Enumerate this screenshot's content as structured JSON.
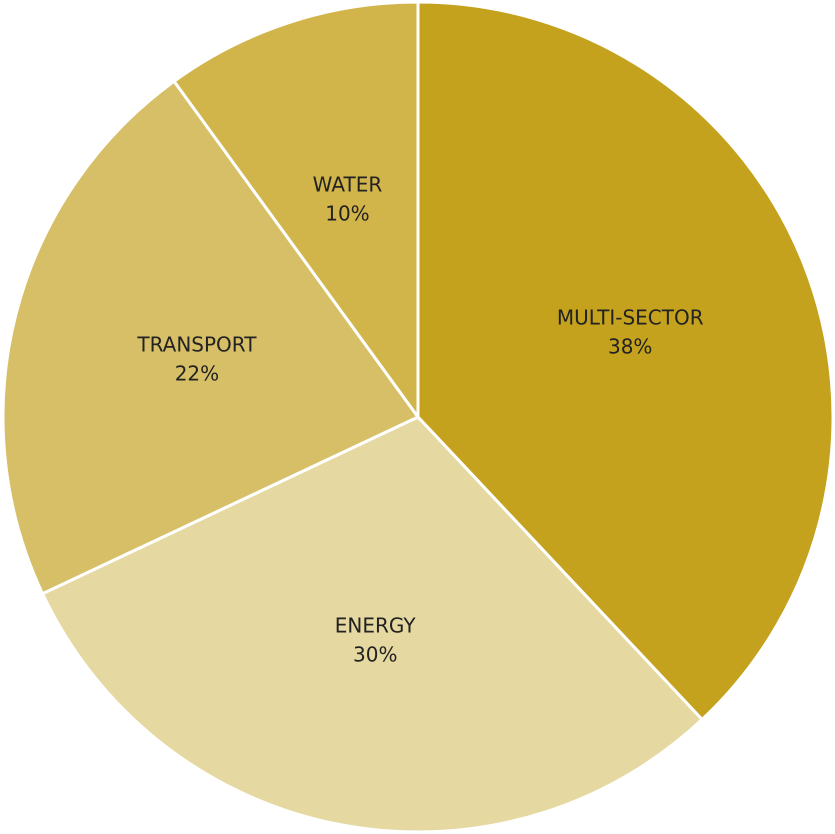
{
  "chart_data": {
    "type": "pie",
    "categories": [
      "MULTI-SECTOR",
      "ENERGY",
      "TRANSPORT",
      "WATER"
    ],
    "values": [
      38,
      30,
      22,
      10
    ],
    "value_labels": [
      "38%",
      "30%",
      "22%",
      "10%"
    ],
    "colors": [
      "#c4a21e",
      "#e5d8a0",
      "#d6bf66",
      "#d1b44a"
    ]
  }
}
